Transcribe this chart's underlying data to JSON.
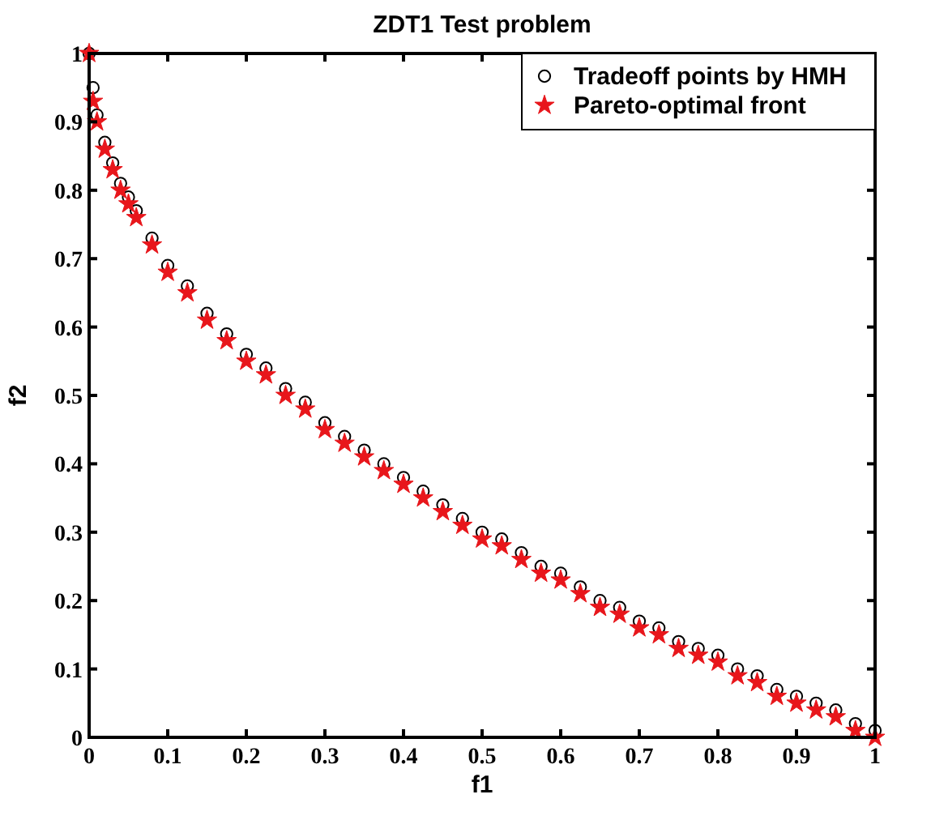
{
  "chart_data": {
    "type": "scatter",
    "title": "ZDT1 Test problem",
    "xlabel": "f1",
    "ylabel": "f2",
    "x": [
      0,
      0.005,
      0.01,
      0.02,
      0.03,
      0.04,
      0.05,
      0.06,
      0.08,
      0.1,
      0.125,
      0.15,
      0.175,
      0.2,
      0.225,
      0.25,
      0.275,
      0.3,
      0.325,
      0.35,
      0.375,
      0.4,
      0.425,
      0.45,
      0.475,
      0.5,
      0.525,
      0.55,
      0.575,
      0.6,
      0.625,
      0.65,
      0.675,
      0.7,
      0.725,
      0.75,
      0.775,
      0.8,
      0.825,
      0.85,
      0.875,
      0.9,
      0.925,
      0.95,
      0.975,
      1
    ],
    "series": [
      {
        "name": "Tradeoff points by HMH",
        "color": "#000000",
        "marker": "circle",
        "values": [
          1.0,
          0.95,
          0.91,
          0.87,
          0.84,
          0.81,
          0.79,
          0.77,
          0.73,
          0.69,
          0.66,
          0.62,
          0.59,
          0.56,
          0.54,
          0.51,
          0.49,
          0.46,
          0.44,
          0.42,
          0.4,
          0.38,
          0.36,
          0.34,
          0.32,
          0.3,
          0.29,
          0.27,
          0.25,
          0.24,
          0.22,
          0.2,
          0.19,
          0.17,
          0.16,
          0.14,
          0.13,
          0.12,
          0.1,
          0.09,
          0.07,
          0.06,
          0.05,
          0.04,
          0.02,
          0.01
        ]
      },
      {
        "name": "Pareto-optimal front",
        "color": "#e8161b",
        "marker": "star",
        "values": [
          1.0,
          0.93,
          0.9,
          0.86,
          0.83,
          0.8,
          0.78,
          0.76,
          0.72,
          0.68,
          0.65,
          0.61,
          0.58,
          0.55,
          0.53,
          0.5,
          0.48,
          0.45,
          0.43,
          0.41,
          0.39,
          0.37,
          0.35,
          0.33,
          0.31,
          0.29,
          0.28,
          0.26,
          0.24,
          0.23,
          0.21,
          0.19,
          0.18,
          0.16,
          0.15,
          0.13,
          0.12,
          0.11,
          0.09,
          0.08,
          0.06,
          0.05,
          0.04,
          0.03,
          0.01,
          0.0
        ]
      }
    ],
    "xlim": [
      0,
      1
    ],
    "xticks": [
      0,
      0.1,
      0.2,
      0.3,
      0.4,
      0.5,
      0.6,
      0.7,
      0.8,
      0.9,
      1
    ],
    "ylim": [
      0,
      1
    ],
    "yticks": [
      0,
      0.1,
      0.2,
      0.3,
      0.4,
      0.5,
      0.6,
      0.7,
      0.8,
      0.9,
      1
    ],
    "legend": "top right"
  }
}
